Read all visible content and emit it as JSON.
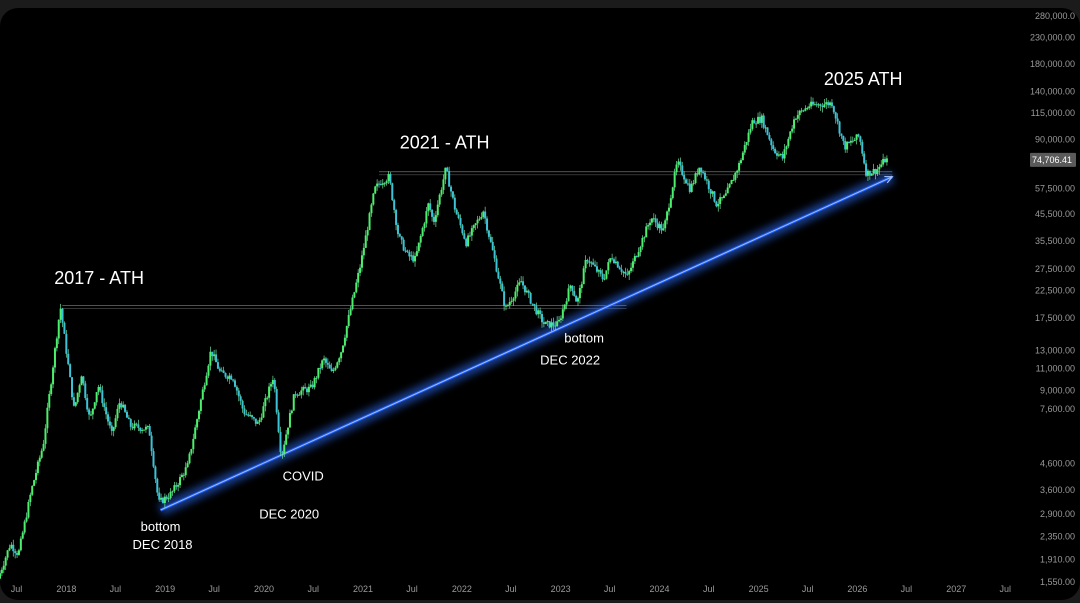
{
  "chart_data": {
    "type": "candlestick",
    "title": "",
    "xlabel": "",
    "ylabel": "",
    "y_scale": "log",
    "ylim": [
      1500,
      300000
    ],
    "xlim": [
      "2017-05-01",
      "2027-09-01"
    ],
    "grid": false,
    "y_ticks": [
      {
        "value": 1550,
        "label": "1,550.00"
      },
      {
        "value": 1910,
        "label": "1,910.00"
      },
      {
        "value": 2350,
        "label": "2,350.00"
      },
      {
        "value": 2900,
        "label": "2,900.00"
      },
      {
        "value": 3600,
        "label": "3,600.00"
      },
      {
        "value": 4600,
        "label": "4,600.00"
      },
      {
        "value": 7600,
        "label": "7,600.00"
      },
      {
        "value": 9000,
        "label": "9,000.00"
      },
      {
        "value": 11000,
        "label": "11,000.00"
      },
      {
        "value": 13000,
        "label": "13,000.00"
      },
      {
        "value": 17500,
        "label": "17,500.00"
      },
      {
        "value": 22500,
        "label": "22,500.00"
      },
      {
        "value": 27500,
        "label": "27,500.00"
      },
      {
        "value": 35500,
        "label": "35,500.00"
      },
      {
        "value": 45500,
        "label": "45,500.00"
      },
      {
        "value": 57500,
        "label": "57,500.00"
      },
      {
        "value": 90000,
        "label": "90,000.00"
      },
      {
        "value": 115000,
        "label": "115,000.00"
      },
      {
        "value": 140000,
        "label": "140,000.00"
      },
      {
        "value": 180000,
        "label": "180,000.00"
      },
      {
        "value": 230000,
        "label": "230,000.00"
      },
      {
        "value": 280000,
        "label": "280,000.0"
      }
    ],
    "x_ticks": [
      {
        "date": "2017-07-01",
        "label": "Jul"
      },
      {
        "date": "2018-01-01",
        "label": "2018"
      },
      {
        "date": "2018-07-01",
        "label": "Jul"
      },
      {
        "date": "2019-01-01",
        "label": "2019"
      },
      {
        "date": "2019-07-01",
        "label": "Jul"
      },
      {
        "date": "2020-01-01",
        "label": "2020"
      },
      {
        "date": "2020-07-01",
        "label": "Jul"
      },
      {
        "date": "2021-01-01",
        "label": "2021"
      },
      {
        "date": "2021-07-01",
        "label": "Jul"
      },
      {
        "date": "2022-01-01",
        "label": "2022"
      },
      {
        "date": "2022-07-01",
        "label": "Jul"
      },
      {
        "date": "2023-01-01",
        "label": "2023"
      },
      {
        "date": "2023-07-01",
        "label": "Jul"
      },
      {
        "date": "2024-01-01",
        "label": "2024"
      },
      {
        "date": "2024-07-01",
        "label": "Jul"
      },
      {
        "date": "2025-01-01",
        "label": "2025"
      },
      {
        "date": "2025-07-01",
        "label": "Jul"
      },
      {
        "date": "2026-01-01",
        "label": "2026"
      },
      {
        "date": "2026-07-01",
        "label": "Jul"
      },
      {
        "date": "2027-01-01",
        "label": "2027"
      },
      {
        "date": "2027-07-01",
        "label": "Jul"
      }
    ],
    "price_keypoints": [
      {
        "date": "2017-05-01",
        "price": 1600
      },
      {
        "date": "2017-06-15",
        "price": 2200
      },
      {
        "date": "2017-07-15",
        "price": 2000
      },
      {
        "date": "2017-09-01",
        "price": 3600
      },
      {
        "date": "2017-10-15",
        "price": 5500
      },
      {
        "date": "2017-12-17",
        "price": 19500
      },
      {
        "date": "2018-02-06",
        "price": 7500
      },
      {
        "date": "2018-03-05",
        "price": 10500
      },
      {
        "date": "2018-04-05",
        "price": 6800
      },
      {
        "date": "2018-05-05",
        "price": 9500
      },
      {
        "date": "2018-06-25",
        "price": 6000
      },
      {
        "date": "2018-07-25",
        "price": 8200
      },
      {
        "date": "2018-09-01",
        "price": 6500
      },
      {
        "date": "2018-11-10",
        "price": 6300
      },
      {
        "date": "2018-12-15",
        "price": 3200
      },
      {
        "date": "2019-02-01",
        "price": 3500
      },
      {
        "date": "2019-04-01",
        "price": 4500
      },
      {
        "date": "2019-06-26",
        "price": 13000
      },
      {
        "date": "2019-08-01",
        "price": 10500
      },
      {
        "date": "2019-09-15",
        "price": 10200
      },
      {
        "date": "2019-10-25",
        "price": 7400
      },
      {
        "date": "2019-12-18",
        "price": 6600
      },
      {
        "date": "2020-02-12",
        "price": 10300
      },
      {
        "date": "2020-03-12",
        "price": 4900
      },
      {
        "date": "2020-05-01",
        "price": 8800
      },
      {
        "date": "2020-07-01",
        "price": 9200
      },
      {
        "date": "2020-08-15",
        "price": 12000
      },
      {
        "date": "2020-09-15",
        "price": 10500
      },
      {
        "date": "2020-10-20",
        "price": 13000
      },
      {
        "date": "2020-12-31",
        "price": 29000
      },
      {
        "date": "2021-02-20",
        "price": 57000
      },
      {
        "date": "2021-03-13",
        "price": 61000
      },
      {
        "date": "2021-04-14",
        "price": 64000
      },
      {
        "date": "2021-05-19",
        "price": 37000
      },
      {
        "date": "2021-06-22",
        "price": 31000
      },
      {
        "date": "2021-07-20",
        "price": 30000
      },
      {
        "date": "2021-09-07",
        "price": 50000
      },
      {
        "date": "2021-09-25",
        "price": 42000
      },
      {
        "date": "2021-11-10",
        "price": 69000
      },
      {
        "date": "2021-12-15",
        "price": 47000
      },
      {
        "date": "2022-01-24",
        "price": 35000
      },
      {
        "date": "2022-03-28",
        "price": 47000
      },
      {
        "date": "2022-05-12",
        "price": 29000
      },
      {
        "date": "2022-06-18",
        "price": 19000
      },
      {
        "date": "2022-08-15",
        "price": 24500
      },
      {
        "date": "2022-09-30",
        "price": 19500
      },
      {
        "date": "2022-11-09",
        "price": 16500
      },
      {
        "date": "2022-12-30",
        "price": 16500
      },
      {
        "date": "2023-02-15",
        "price": 24000
      },
      {
        "date": "2023-03-10",
        "price": 20000
      },
      {
        "date": "2023-04-14",
        "price": 30500
      },
      {
        "date": "2023-06-15",
        "price": 25000
      },
      {
        "date": "2023-07-14",
        "price": 31000
      },
      {
        "date": "2023-09-11",
        "price": 25500
      },
      {
        "date": "2023-12-08",
        "price": 44000
      },
      {
        "date": "2024-01-23",
        "price": 39000
      },
      {
        "date": "2024-03-14",
        "price": 73000
      },
      {
        "date": "2024-05-01",
        "price": 57000
      },
      {
        "date": "2024-06-05",
        "price": 71000
      },
      {
        "date": "2024-08-05",
        "price": 50000
      },
      {
        "date": "2024-09-06",
        "price": 53000
      },
      {
        "date": "2024-10-29",
        "price": 72000
      },
      {
        "date": "2024-12-17",
        "price": 107000
      },
      {
        "date": "2025-01-20",
        "price": 109000
      },
      {
        "date": "2025-03-05",
        "price": 82000
      },
      {
        "date": "2025-04-07",
        "price": 76000
      },
      {
        "date": "2025-05-22",
        "price": 111000
      },
      {
        "date": "2025-07-14",
        "price": 123000
      },
      {
        "date": "2025-08-14",
        "price": 124000
      },
      {
        "date": "2025-10-06",
        "price": 126000
      },
      {
        "date": "2025-11-21",
        "price": 84000
      },
      {
        "date": "2026-01-15",
        "price": 93000
      },
      {
        "date": "2026-02-10",
        "price": 66000
      },
      {
        "date": "2026-03-20",
        "price": 68000
      },
      {
        "date": "2026-04-20",
        "price": 74700
      }
    ],
    "support_trendline": {
      "start": {
        "date": "2018-12-15",
        "price": 3000
      },
      "end": {
        "date": "2026-05-10",
        "price": 64000
      }
    },
    "horizontal_lines": [
      {
        "from_date": "2017-12-17",
        "to_date": "2023-09-01",
        "price": 19600
      },
      {
        "from_date": "2021-03-01",
        "to_date": "2026-05-10",
        "price": 67000
      }
    ],
    "current_price": {
      "value": 74706.41,
      "label": "74,706.41"
    },
    "annotations": [
      {
        "text": "2017 - ATH",
        "date": "2017-12-17",
        "price": 19500,
        "size": "big",
        "dx": -8,
        "dy": -22
      },
      {
        "text": "2021 - ATH",
        "date": "2021-11-10",
        "price": 69000,
        "size": "big",
        "dx": -48,
        "dy": -20
      },
      {
        "text": "2025 ATH",
        "date": "2025-10-06",
        "price": 126000,
        "size": "big",
        "dx": -10,
        "dy": -18
      },
      {
        "text": "bottom",
        "date": "2018-12-15",
        "price": 3200,
        "size": "small",
        "dx": 0,
        "dy": 28
      },
      {
        "text": "DEC 2018",
        "date": "2018-12-15",
        "price": 3200,
        "size": "small-2",
        "dx": 2,
        "dy": 46
      },
      {
        "text": "COVID",
        "date": "2020-03-12",
        "price": 4900,
        "size": "small",
        "dx": 20,
        "dy": 24
      },
      {
        "text": "DEC 2020",
        "date": "2020-03-12",
        "price": 4900,
        "size": "small-2",
        "dx": 6,
        "dy": 62
      },
      {
        "text": "bottom",
        "date": "2022-12-30",
        "price": 16500,
        "size": "small",
        "dx": 24,
        "dy": 18
      },
      {
        "text": "DEC 2022",
        "date": "2022-12-30",
        "price": 16500,
        "size": "small-2",
        "dx": 10,
        "dy": 40
      }
    ],
    "colors": {
      "background": "#000000",
      "up": "#4cf06a",
      "down": "#3cc3d8",
      "wick": "#6fe0a0",
      "trendline": "#1f5fff",
      "trend_glow": "#2f6fff",
      "hline": "#8a8a8a",
      "tick_text": "#9a9a9a",
      "price_label_bg": "#5a5a5a"
    }
  }
}
